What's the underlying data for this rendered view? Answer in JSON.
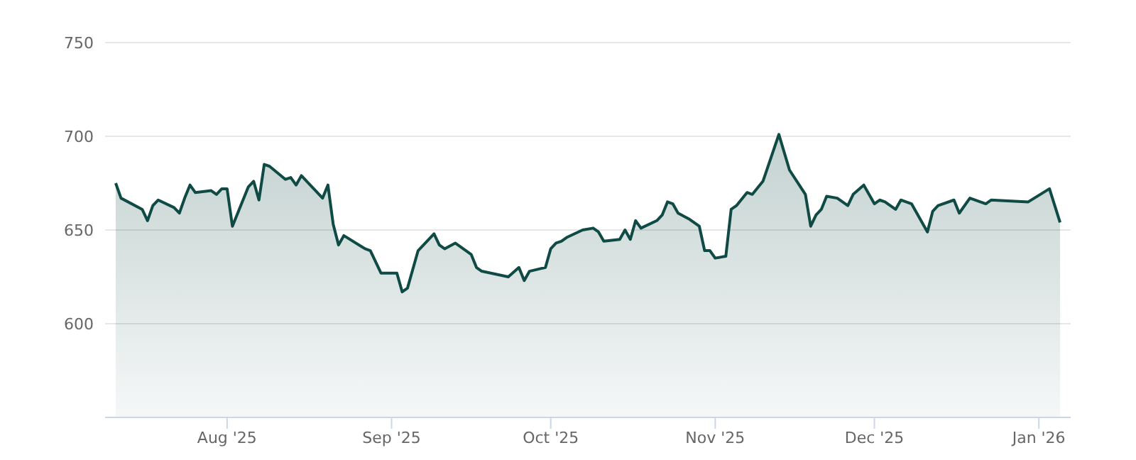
{
  "chart_data": {
    "type": "area",
    "x": [
      "2025-07-11",
      "2025-07-12",
      "2025-07-16",
      "2025-07-17",
      "2025-07-18",
      "2025-07-19",
      "2025-07-22",
      "2025-07-23",
      "2025-07-24",
      "2025-07-25",
      "2025-07-26",
      "2025-07-29",
      "2025-07-30",
      "2025-07-31",
      "2025-08-01",
      "2025-08-02",
      "2025-08-05",
      "2025-08-06",
      "2025-08-07",
      "2025-08-08",
      "2025-08-09",
      "2025-08-12",
      "2025-08-13",
      "2025-08-14",
      "2025-08-15",
      "2025-08-19",
      "2025-08-20",
      "2025-08-21",
      "2025-08-22",
      "2025-08-23",
      "2025-08-27",
      "2025-08-28",
      "2025-08-30",
      "2025-09-02",
      "2025-09-03",
      "2025-09-04",
      "2025-09-06",
      "2025-09-09",
      "2025-09-10",
      "2025-09-11",
      "2025-09-13",
      "2025-09-16",
      "2025-09-17",
      "2025-09-18",
      "2025-09-23",
      "2025-09-25",
      "2025-09-26",
      "2025-09-27",
      "2025-09-30",
      "2025-10-01",
      "2025-10-02",
      "2025-10-03",
      "2025-10-04",
      "2025-10-07",
      "2025-10-09",
      "2025-10-10",
      "2025-10-11",
      "2025-10-14",
      "2025-10-15",
      "2025-10-16",
      "2025-10-17",
      "2025-10-18",
      "2025-10-21",
      "2025-10-22",
      "2025-10-23",
      "2025-10-24",
      "2025-10-25",
      "2025-10-27",
      "2025-10-29",
      "2025-10-30",
      "2025-10-31",
      "2025-11-01",
      "2025-11-03",
      "2025-11-04",
      "2025-11-05",
      "2025-11-07",
      "2025-11-08",
      "2025-11-10",
      "2025-11-13",
      "2025-11-15",
      "2025-11-18",
      "2025-11-19",
      "2025-11-20",
      "2025-11-21",
      "2025-11-22",
      "2025-11-24",
      "2025-11-26",
      "2025-11-27",
      "2025-11-29",
      "2025-12-01",
      "2025-12-02",
      "2025-12-03",
      "2025-12-05",
      "2025-12-06",
      "2025-12-08",
      "2025-12-11",
      "2025-12-12",
      "2025-12-13",
      "2025-12-16",
      "2025-12-17",
      "2025-12-19",
      "2025-12-22",
      "2025-12-23",
      "2025-12-30",
      "2026-01-03",
      "2026-01-05"
    ],
    "series": [
      {
        "color": "#0f4a44",
        "values": [
          675,
          667,
          661,
          655,
          663,
          666,
          662,
          659,
          667,
          674,
          670,
          671,
          669,
          672,
          672,
          652,
          673,
          676,
          666,
          685,
          684,
          677,
          678,
          674,
          679,
          667,
          674,
          653,
          642,
          647,
          640,
          639,
          627,
          627,
          617,
          619,
          639,
          648,
          642,
          640,
          643,
          637,
          630,
          628,
          625,
          630,
          623,
          628,
          630,
          640,
          643,
          644,
          646,
          650,
          651,
          649,
          644,
          645,
          650,
          645,
          655,
          651,
          655,
          658,
          665,
          664,
          659,
          656,
          652,
          639,
          639,
          635,
          636,
          661,
          663,
          670,
          669,
          676,
          701,
          682,
          669,
          652,
          658,
          661,
          668,
          667,
          663,
          669,
          674,
          664,
          666,
          665,
          661,
          666,
          664,
          649,
          660,
          663,
          666,
          659,
          667,
          664,
          666,
          665,
          672,
          654
        ]
      }
    ],
    "xlim": [
      "2025-07-09",
      "2026-01-07"
    ],
    "xticks": [
      {
        "value": "2025-08-01",
        "label": "Aug '25"
      },
      {
        "value": "2025-09-01",
        "label": "Sep '25"
      },
      {
        "value": "2025-10-01",
        "label": "Oct '25"
      },
      {
        "value": "2025-11-01",
        "label": "Nov '25"
      },
      {
        "value": "2025-12-01",
        "label": "Dec '25"
      },
      {
        "value": "2026-01-01",
        "label": "Jan '26"
      }
    ],
    "ylim": [
      550,
      750
    ],
    "yticks": [
      600,
      650,
      700,
      750
    ],
    "grid": "y",
    "legend": false,
    "marker": "none"
  }
}
